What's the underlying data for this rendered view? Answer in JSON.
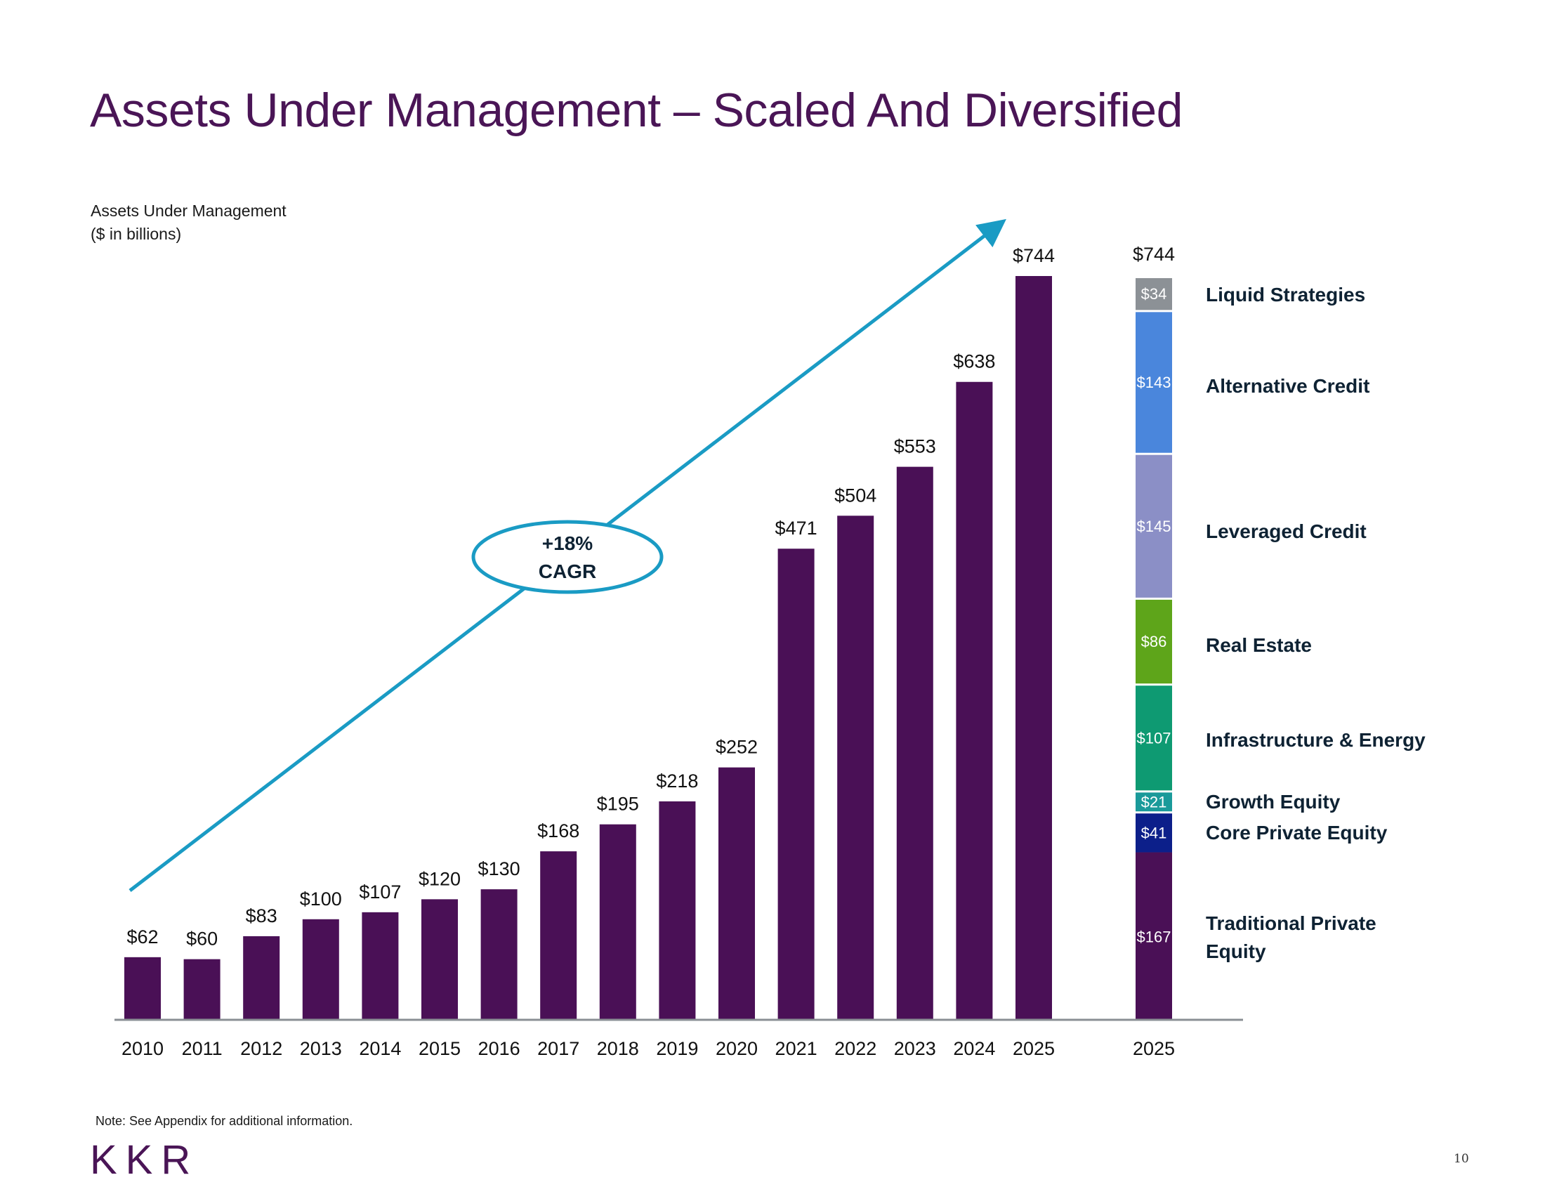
{
  "page": {
    "title": "Assets Under Management – Scaled And Diversified",
    "subtitle_line1": "Assets Under Management",
    "subtitle_line2": "($ in billions)",
    "note": "Note:  See Appendix for additional information.",
    "logo": "KKR",
    "page_number": "10"
  },
  "annotation": {
    "cagr_line1": "+18%",
    "cagr_line2": "CAGR",
    "color": "#1a9bc4"
  },
  "chart_data": [
    {
      "type": "bar",
      "title": "Assets Under Management",
      "ylabel": "($ in billions)",
      "xlabel": "",
      "categories": [
        "2010",
        "2011",
        "2012",
        "2013",
        "2014",
        "2015",
        "2016",
        "2017",
        "2018",
        "2019",
        "2020",
        "2021",
        "2022",
        "2023",
        "2024",
        "2025"
      ],
      "values": [
        62,
        60,
        83,
        100,
        107,
        120,
        130,
        168,
        195,
        218,
        252,
        471,
        504,
        553,
        638,
        744
      ],
      "data_labels": [
        "$62",
        "$60",
        "$83",
        "$100",
        "$107",
        "$120",
        "$130",
        "$168",
        "$195",
        "$218",
        "$252",
        "$471",
        "$504",
        "$553",
        "$638",
        "$744"
      ],
      "color": "#4a1056",
      "ylim": [
        0,
        744
      ],
      "grid": false,
      "trend_annotation": "+18% CAGR"
    },
    {
      "type": "bar",
      "stacked": true,
      "categories": [
        "2025"
      ],
      "total_label": "$744",
      "series": [
        {
          "name": "Traditional Private Equity",
          "values": [
            167
          ],
          "label": "$167",
          "color": "#4a1056"
        },
        {
          "name": "Core Private Equity",
          "values": [
            41
          ],
          "label": "$41",
          "color": "#0c1f8a"
        },
        {
          "name": "Growth Equity",
          "values": [
            21
          ],
          "label": "$21",
          "color": "#1a9a9a"
        },
        {
          "name": "Infrastructure & Energy",
          "values": [
            107
          ],
          "label": "$107",
          "color": "#0e9a72"
        },
        {
          "name": "Real Estate",
          "values": [
            86
          ],
          "label": "$86",
          "color": "#5ea51a"
        },
        {
          "name": "Leveraged Credit",
          "values": [
            145
          ],
          "label": "$145",
          "color": "#8b8fc6"
        },
        {
          "name": "Alternative Credit",
          "values": [
            143
          ],
          "label": "$143",
          "color": "#4a86dc"
        },
        {
          "name": "Liquid Strategies",
          "values": [
            34
          ],
          "label": "$34",
          "color": "#8c9196"
        }
      ],
      "legend": "right"
    }
  ]
}
